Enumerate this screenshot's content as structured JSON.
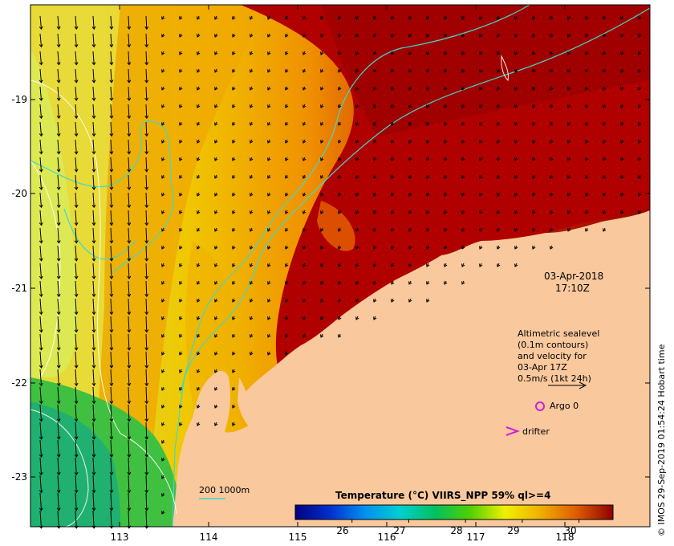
{
  "map": {
    "lat_ticks": [
      "-19",
      "-20",
      "-21",
      "-22",
      "-23"
    ],
    "lon_ticks": [
      "113",
      "114",
      "115",
      "116",
      "117",
      "118"
    ],
    "lat_range": [
      -23.6,
      -18.0
    ],
    "lon_range": [
      112.0,
      118.95
    ]
  },
  "annotation": {
    "date": "03-Apr-2018",
    "time": "17:10Z",
    "legend_lines": [
      "Altimetric sealevel",
      "(0.1m contours)",
      "and velocity for",
      "03-Apr 17Z",
      "0.5m/s (1kt 24h)"
    ],
    "argo_label": "Argo 0",
    "drifter_label": "drifter",
    "isobath_label": "200  1000m"
  },
  "colorbar": {
    "title": "Temperature (°C) VIIRS_NPP 59% ql>=4",
    "ticks": [
      "26",
      "27",
      "28",
      "29",
      "30"
    ],
    "tick_values": [
      26,
      27,
      28,
      29,
      30
    ],
    "range": [
      25,
      30.6
    ]
  },
  "credit": "© IMOS 29-Sep-2019 01:54:24 Hobart time",
  "colors": {
    "land": "#f9c89d",
    "isobath": "#40d8c8",
    "argo": "#d020d0",
    "drifter": "#d020d0"
  }
}
